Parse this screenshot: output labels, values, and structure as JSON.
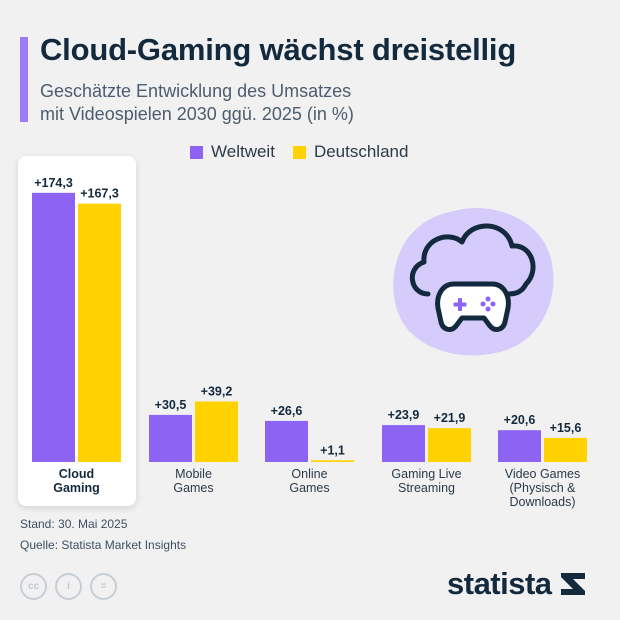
{
  "header": {
    "title": "Cloud-Gaming wächst dreistellig",
    "subtitle_line1": "Geschätzte Entwicklung des Umsatzes",
    "subtitle_line2": "mit Videospielen 2030 ggü. 2025 (in %)"
  },
  "legend": {
    "series_1": "Weltweit",
    "series_2": "Deutschland"
  },
  "colors": {
    "weltweit": "#8c63f3",
    "deutschland": "#ffd200",
    "accent": "#9d7cf8",
    "text_dark": "#13293d"
  },
  "chart_data": {
    "type": "bar",
    "title": "Cloud-Gaming wächst dreistellig",
    "subtitle": "Geschätzte Entwicklung des Umsatzes mit Videospielen 2030 ggü. 2025 (in %)",
    "xlabel": "",
    "ylabel": "",
    "ylim": [
      0,
      180
    ],
    "categories": [
      [
        "Cloud",
        "Gaming"
      ],
      [
        "Mobile",
        "Games"
      ],
      [
        "Online",
        "Games"
      ],
      [
        "Gaming Live",
        "Streaming"
      ],
      [
        "Video Games",
        "(Physisch &",
        "Downloads)"
      ]
    ],
    "highlighted_category": 0,
    "series": [
      {
        "name": "Weltweit",
        "values": [
          174.3,
          30.5,
          26.6,
          23.9,
          20.6
        ],
        "labels": [
          "+174,3",
          "+30,5",
          "+26,6",
          "+23,9",
          "+20,6"
        ]
      },
      {
        "name": "Deutschland",
        "values": [
          167.3,
          39.2,
          1.1,
          21.9,
          15.6
        ],
        "labels": [
          "+167,3",
          "+39,2",
          "+1,1",
          "+21,9",
          "+15,6"
        ]
      }
    ],
    "legend_position": "top",
    "grid": false
  },
  "footer": {
    "stand": "Stand: 30. Mai 2025",
    "quelle": "Quelle: Statista Market Insights",
    "brand": "statista",
    "cc_labels": [
      "cc",
      "i",
      "="
    ]
  }
}
